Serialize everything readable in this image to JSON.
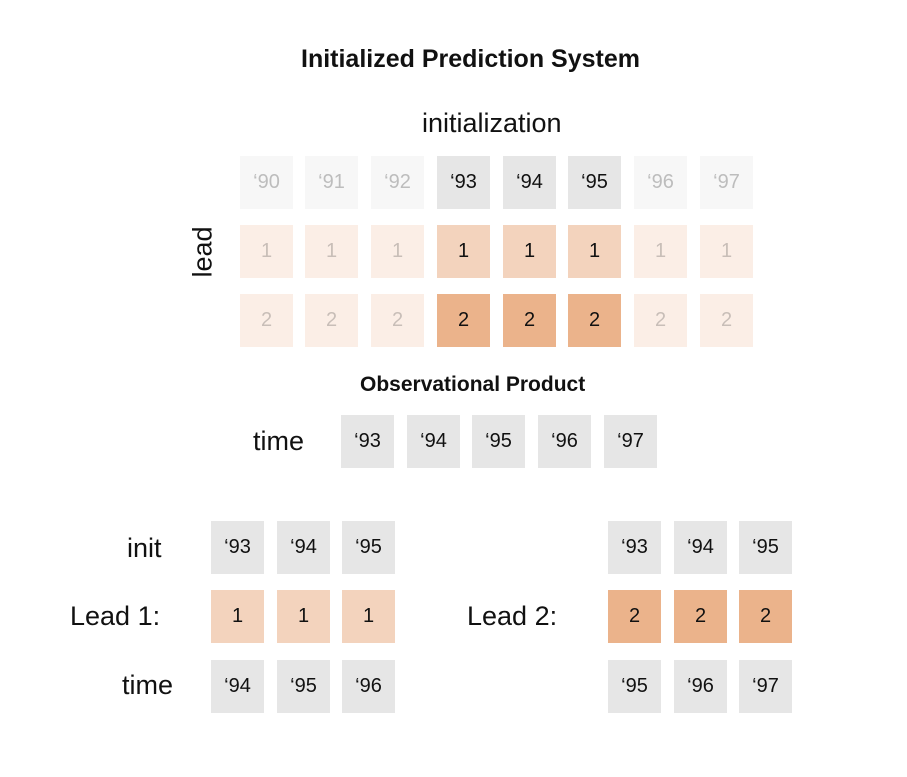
{
  "title": "Initialized Prediction System",
  "top_grid": {
    "axis_label": "initialization",
    "row_axis_label": "lead",
    "init_years": [
      "‘90",
      "‘91",
      "‘92",
      "‘93",
      "‘94",
      "‘95",
      "‘96",
      "‘97"
    ],
    "lead1": [
      "1",
      "1",
      "1",
      "1",
      "1",
      "1",
      "1",
      "1"
    ],
    "lead2": [
      "2",
      "2",
      "2",
      "2",
      "2",
      "2",
      "2",
      "2"
    ]
  },
  "observational": {
    "title": "Observational Product",
    "label": "time",
    "years": [
      "‘93",
      "‘94",
      "‘95",
      "‘96",
      "‘97"
    ]
  },
  "lead1_panel": {
    "init_label": "init",
    "lead_label": "Lead 1:",
    "time_label": "time",
    "init": [
      "‘93",
      "‘94",
      "‘95"
    ],
    "lead": [
      "1",
      "1",
      "1"
    ],
    "time": [
      "‘94",
      "‘95",
      "‘96"
    ]
  },
  "lead2_panel": {
    "lead_label": "Lead 2:",
    "init": [
      "‘93",
      "‘94",
      "‘95"
    ],
    "lead": [
      "2",
      "2",
      "2"
    ],
    "time": [
      "‘95",
      "‘96",
      "‘97"
    ]
  },
  "colors": {
    "gray_cell": "#e6e6e6",
    "lead1_cell": "#f3d3bd",
    "lead2_cell": "#ebb38b"
  }
}
